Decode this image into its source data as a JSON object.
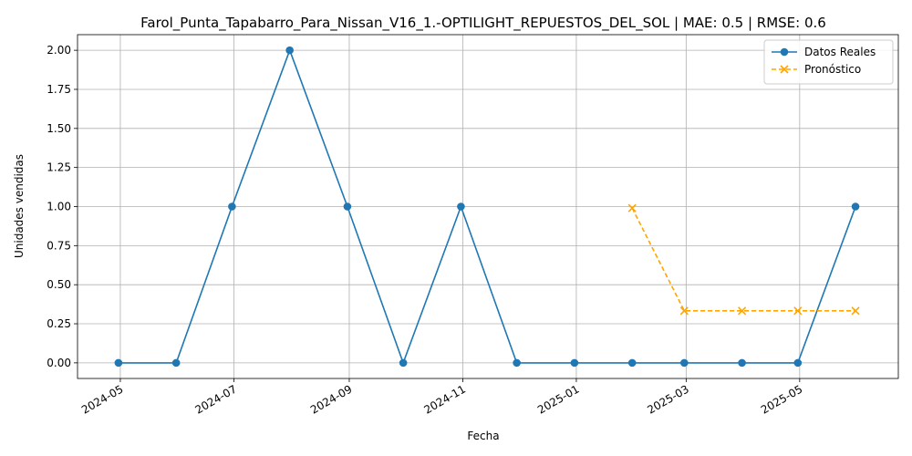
{
  "chart_data": {
    "type": "line",
    "title": "Farol_Punta_Tapabarro_Para_Nissan_V16_1.-OPTILIGHT_REPUESTOS_DEL_SOL | MAE: 0.5 | RMSE: 0.6",
    "xlabel": "Fecha",
    "ylabel": "Unidades vendidas",
    "grid": true,
    "legend_position": "top-right",
    "xlim": [
      "2024-04-08",
      "2025-06-23"
    ],
    "ylim": [
      -0.1,
      2.1
    ],
    "x_ticks": [
      "2024-05-01",
      "2024-07-01",
      "2024-09-01",
      "2024-11-01",
      "2025-01-01",
      "2025-03-01",
      "2025-05-01"
    ],
    "x_tick_labels": [
      "2024-05",
      "2024-07",
      "2024-09",
      "2024-11",
      "2025-01",
      "2025-03",
      "2025-05"
    ],
    "y_ticks": [
      0.0,
      0.25,
      0.5,
      0.75,
      1.0,
      1.25,
      1.5,
      1.75,
      2.0
    ],
    "y_tick_labels": [
      "0.00",
      "0.25",
      "0.50",
      "0.75",
      "1.00",
      "1.25",
      "1.50",
      "1.75",
      "2.00"
    ],
    "series": [
      {
        "name": "Datos Reales",
        "color": "#1f77b4",
        "marker": "circle",
        "line_style": "solid",
        "x": [
          "2024-04-30",
          "2024-05-31",
          "2024-06-30",
          "2024-07-31",
          "2024-08-31",
          "2024-09-30",
          "2024-10-31",
          "2024-11-30",
          "2024-12-31",
          "2025-01-31",
          "2025-02-28",
          "2025-03-31",
          "2025-04-30",
          "2025-05-31"
        ],
        "values": [
          0,
          0,
          1,
          2,
          1,
          0,
          1,
          0,
          0,
          0,
          0,
          0,
          0,
          1
        ]
      },
      {
        "name": "Pronóstico",
        "color": "#ffa500",
        "marker": "x",
        "line_style": "dashed",
        "x": [
          "2025-01-31",
          "2025-02-28",
          "2025-03-31",
          "2025-04-30",
          "2025-05-31"
        ],
        "values": [
          0.99,
          0.333,
          0.333,
          0.333,
          0.333
        ]
      }
    ]
  }
}
